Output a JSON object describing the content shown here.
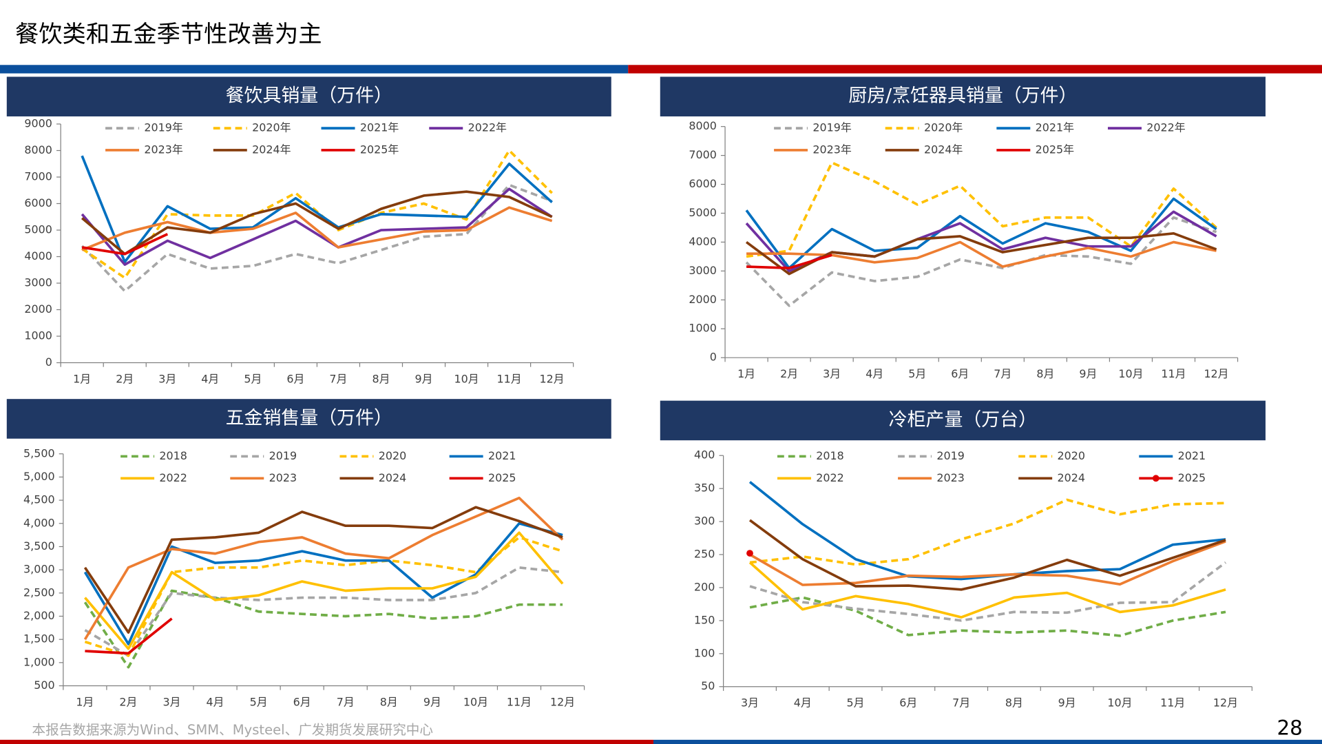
{
  "title": "餐饮类和五金季节性改善为主",
  "source": "本报告数据来源为Wind、SMM、Mysteel、广发期货发展研究中心",
  "page_number": "28",
  "chart_data": [
    {
      "type": "line",
      "title": "餐饮具销量（万件）",
      "categories": [
        "1月",
        "2月",
        "3月",
        "4月",
        "5月",
        "6月",
        "7月",
        "8月",
        "9月",
        "10月",
        "11月",
        "12月"
      ],
      "ylim": [
        0,
        9000
      ],
      "yticks": [
        0,
        1000,
        2000,
        3000,
        4000,
        5000,
        6000,
        7000,
        8000,
        9000
      ],
      "series": [
        {
          "name": "2019年",
          "color": "#a6a6a6",
          "dash": true,
          "values": [
            4400,
            2700,
            4100,
            3550,
            3650,
            4100,
            3750,
            4250,
            4750,
            4850,
            6700,
            6100
          ]
        },
        {
          "name": "2020年",
          "color": "#ffc000",
          "dash": true,
          "values": [
            4300,
            3200,
            5600,
            5550,
            5550,
            6400,
            5000,
            5650,
            6000,
            5400,
            8000,
            6400
          ]
        },
        {
          "name": "2021年",
          "color": "#0070c0",
          "values": [
            7800,
            3800,
            5900,
            5050,
            5100,
            6200,
            5100,
            5600,
            5550,
            5500,
            7500,
            6050
          ]
        },
        {
          "name": "2022年",
          "color": "#7030a0",
          "values": [
            5600,
            3700,
            4600,
            3950,
            4650,
            5350,
            4350,
            5000,
            5050,
            5100,
            6550,
            5500
          ]
        },
        {
          "name": "2023年",
          "color": "#ed7d31",
          "values": [
            4250,
            4900,
            5300,
            4900,
            5050,
            5650,
            4350,
            4650,
            4950,
            5000,
            5850,
            5350
          ]
        },
        {
          "name": "2024年",
          "color": "#843c0c",
          "values": [
            5450,
            4100,
            5100,
            4900,
            5600,
            6000,
            5050,
            5800,
            6300,
            6450,
            6250,
            5500
          ]
        },
        {
          "name": "2025年",
          "color": "#e00000",
          "values": [
            4350,
            4100,
            4850,
            null,
            null,
            null,
            null,
            null,
            null,
            null,
            null,
            null
          ]
        }
      ]
    },
    {
      "type": "line",
      "title": "厨房/烹饪器具销量（万件）",
      "categories": [
        "1月",
        "2月",
        "3月",
        "4月",
        "5月",
        "6月",
        "7月",
        "8月",
        "9月",
        "10月",
        "11月",
        "12月"
      ],
      "ylim": [
        0,
        8000
      ],
      "yticks": [
        0,
        1000,
        2000,
        3000,
        4000,
        5000,
        6000,
        7000,
        8000
      ],
      "series": [
        {
          "name": "2019年",
          "color": "#a6a6a6",
          "dash": true,
          "values": [
            3300,
            1800,
            2950,
            2650,
            2800,
            3400,
            3100,
            3550,
            3500,
            3250,
            4850,
            4350
          ]
        },
        {
          "name": "2020年",
          "color": "#ffc000",
          "dash": true,
          "values": [
            3500,
            3700,
            6750,
            6100,
            5300,
            5950,
            4550,
            4850,
            4850,
            3850,
            5850,
            4500
          ]
        },
        {
          "name": "2021年",
          "color": "#0070c0",
          "values": [
            5100,
            3100,
            4450,
            3700,
            3800,
            4900,
            3950,
            4650,
            4350,
            3700,
            5500,
            4450
          ]
        },
        {
          "name": "2022年",
          "color": "#7030a0",
          "values": [
            4650,
            3000,
            3650,
            3500,
            4100,
            4650,
            3750,
            4150,
            3850,
            3850,
            5050,
            4200
          ]
        },
        {
          "name": "2023年",
          "color": "#ed7d31",
          "values": [
            3600,
            3600,
            3550,
            3300,
            3450,
            4000,
            3150,
            3500,
            3800,
            3500,
            4000,
            3700
          ]
        },
        {
          "name": "2024年",
          "color": "#843c0c",
          "values": [
            4000,
            2900,
            3650,
            3500,
            4100,
            4200,
            3650,
            3900,
            4150,
            4150,
            4300,
            3750
          ]
        },
        {
          "name": "2025年",
          "color": "#e00000",
          "values": [
            3150,
            3100,
            3550,
            null,
            null,
            null,
            null,
            null,
            null,
            null,
            null,
            null
          ]
        }
      ]
    },
    {
      "type": "line",
      "title": "五金销售量（万件）",
      "categories": [
        "1月",
        "2月",
        "3月",
        "4月",
        "5月",
        "6月",
        "7月",
        "8月",
        "9月",
        "10月",
        "11月",
        "12月"
      ],
      "ylim": [
        500,
        5500
      ],
      "yticks": [
        500,
        {
          "value": 1000,
          "label": "1,000"
        },
        {
          "value": 1500,
          "label": "1,500"
        },
        {
          "value": 2000,
          "label": "2,000"
        },
        {
          "value": 2500,
          "label": "2,500"
        },
        {
          "value": 3000,
          "label": "3,000"
        },
        {
          "value": 3500,
          "label": "3,500"
        },
        {
          "value": 4000,
          "label": "4,000"
        },
        {
          "value": 4500,
          "label": "4,500"
        },
        {
          "value": 5000,
          "label": "5,000"
        },
        {
          "value": 5500,
          "label": "5,500"
        }
      ],
      "series": [
        {
          "name": "2018",
          "color": "#70ad47",
          "dash": true,
          "values": [
            2300,
            900,
            2550,
            2400,
            2100,
            2050,
            2000,
            2050,
            1950,
            2000,
            2250,
            2250
          ]
        },
        {
          "name": "2019",
          "color": "#a6a6a6",
          "dash": true,
          "values": [
            1700,
            1150,
            2500,
            2400,
            2350,
            2400,
            2400,
            2350,
            2350,
            2500,
            3050,
            2950
          ]
        },
        {
          "name": "2020",
          "color": "#ffc000",
          "dash": true,
          "values": [
            1450,
            1150,
            2950,
            3050,
            3050,
            3200,
            3100,
            3200,
            3100,
            2950,
            3700,
            3400
          ]
        },
        {
          "name": "2021",
          "color": "#0070c0",
          "values": [
            2950,
            1400,
            3500,
            3150,
            3200,
            3400,
            3200,
            3200,
            2400,
            2900,
            4000,
            3750
          ]
        },
        {
          "name": "2022",
          "color": "#ffc000",
          "values": [
            2400,
            1300,
            2950,
            2350,
            2450,
            2750,
            2550,
            2600,
            2600,
            2850,
            3800,
            2700
          ]
        },
        {
          "name": "2023",
          "color": "#ed7d31",
          "values": [
            1500,
            3050,
            3450,
            3350,
            3600,
            3700,
            3350,
            3250,
            3750,
            4150,
            4550,
            3650
          ]
        },
        {
          "name": "2024",
          "color": "#843c0c",
          "values": [
            3050,
            1650,
            3650,
            3700,
            3800,
            4250,
            3950,
            3950,
            3900,
            4350,
            4050,
            3700
          ]
        },
        {
          "name": "2025",
          "color": "#e00000",
          "values": [
            1250,
            1200,
            1950,
            null,
            null,
            null,
            null,
            null,
            null,
            null,
            null,
            null
          ]
        }
      ]
    },
    {
      "type": "line",
      "title": "冷柜产量（万台）",
      "categories": [
        "3月",
        "4月",
        "5月",
        "6月",
        "7月",
        "8月",
        "9月",
        "10月",
        "11月",
        "12月"
      ],
      "ylim": [
        50,
        400
      ],
      "yticks": [
        50,
        100,
        150,
        200,
        250,
        300,
        350,
        400
      ],
      "series": [
        {
          "name": "2018",
          "color": "#70ad47",
          "dash": true,
          "values": [
            170,
            185,
            165,
            128,
            135,
            132,
            135,
            127,
            150,
            163
          ]
        },
        {
          "name": "2019",
          "color": "#a6a6a6",
          "dash": true,
          "values": [
            202,
            178,
            168,
            160,
            150,
            163,
            162,
            177,
            178,
            238
          ]
        },
        {
          "name": "2020",
          "color": "#ffc000",
          "dash": true,
          "values": [
            238,
            247,
            235,
            243,
            273,
            297,
            333,
            311,
            326,
            328
          ]
        },
        {
          "name": "2021",
          "color": "#0070c0",
          "values": [
            360,
            296,
            243,
            217,
            213,
            220,
            225,
            228,
            265,
            273
          ]
        },
        {
          "name": "2022",
          "color": "#ffc000",
          "values": [
            238,
            167,
            187,
            175,
            155,
            185,
            192,
            163,
            173,
            197
          ]
        },
        {
          "name": "2023",
          "color": "#ed7d31",
          "values": [
            250,
            204,
            207,
            218,
            216,
            220,
            218,
            205,
            240,
            270
          ]
        },
        {
          "name": "2024",
          "color": "#843c0c",
          "values": [
            302,
            243,
            202,
            203,
            197,
            215,
            242,
            218,
            245,
            272
          ]
        },
        {
          "name": "2025",
          "color": "#e00000",
          "marker": true,
          "values": [
            252,
            null,
            null,
            null,
            null,
            null,
            null,
            null,
            null,
            null
          ]
        }
      ]
    }
  ]
}
